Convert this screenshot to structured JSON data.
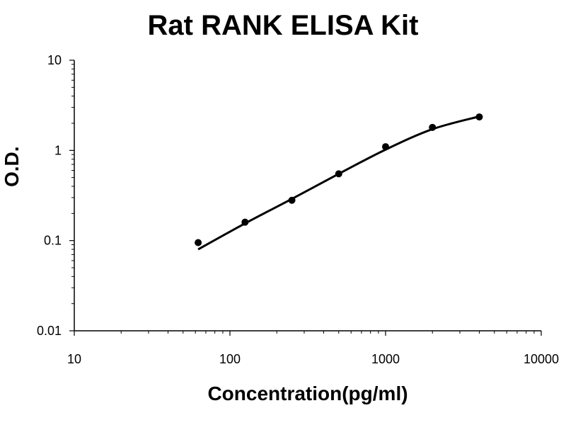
{
  "chart_data": {
    "type": "scatter",
    "title": "Rat RANK ELISA Kit",
    "xlabel": "Concentration(pg/ml)",
    "ylabel": "O.D.",
    "x_scale": "log",
    "y_scale": "log",
    "xlim": [
      10,
      10000
    ],
    "ylim": [
      0.01,
      10
    ],
    "x_ticks": [
      "10",
      "100",
      "1000",
      "10000"
    ],
    "y_ticks": [
      "0.01",
      "0.1",
      "1",
      "10"
    ],
    "grid": false,
    "legend": "none",
    "series": [
      {
        "x": [
          62.5,
          125,
          250,
          500,
          1000,
          2000,
          4000
        ],
        "y": [
          0.095,
          0.16,
          0.28,
          0.55,
          1.1,
          1.8,
          2.35
        ]
      }
    ],
    "fit_curve": {
      "x": [
        62.5,
        125,
        250,
        500,
        1000,
        2000,
        4000
      ],
      "y": [
        0.08,
        0.155,
        0.29,
        0.55,
        1.02,
        1.72,
        2.38
      ]
    },
    "colors": {
      "marker": "#000000",
      "line": "#000000"
    }
  }
}
